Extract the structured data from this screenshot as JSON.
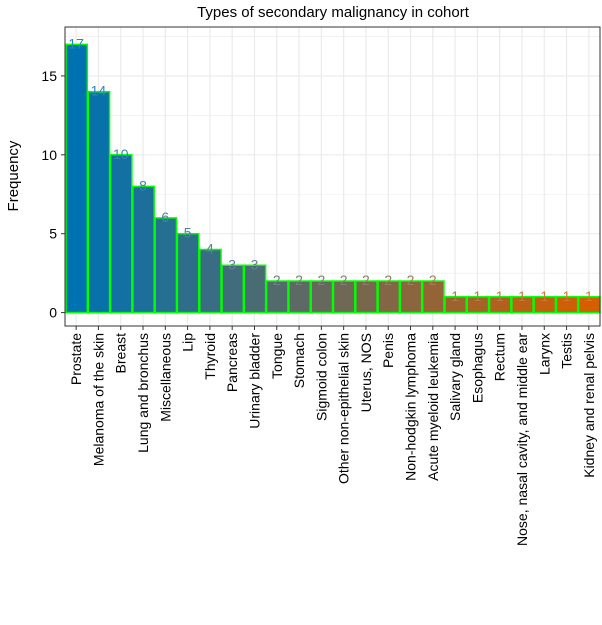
{
  "chart_data": {
    "type": "bar",
    "title": "Types of secondary malignancy in cohort",
    "xlabel": "",
    "ylabel": "Frequency",
    "ylim": [
      -0.85,
      18.1
    ],
    "yticks": [
      0,
      5,
      10,
      15
    ],
    "grid": true,
    "legend": "none",
    "categories": [
      "Prostate",
      "Melanoma of the skin",
      "Breast",
      "Lung and bronchus",
      "Miscellaneous",
      "Lip",
      "Thyroid",
      "Pancreas",
      "Urinary bladder",
      "Tongue",
      "Stomach",
      "Sigmoid colon",
      "Other non-epithelial skin",
      "Uterus, NOS",
      "Penis",
      "Non-hodgkin lymphoma",
      "Acute myeloid leukemia",
      "Salivary gland",
      "Esophagus",
      "Rectum",
      "Nose, nasal cavity, and middle ear",
      "Larynx",
      "Testis",
      "Kidney and renal pelvis"
    ],
    "values": [
      17,
      14,
      10,
      8,
      6,
      5,
      4,
      3,
      3,
      2,
      2,
      2,
      2,
      2,
      2,
      2,
      2,
      1,
      1,
      1,
      1,
      1,
      1,
      1
    ],
    "colors": {
      "gradient_start": "#0072B2",
      "gradient_end": "#D55E00",
      "bar_outline": "#00FF00",
      "grid": "#EBEBEB",
      "panel_border": "#333333"
    }
  }
}
